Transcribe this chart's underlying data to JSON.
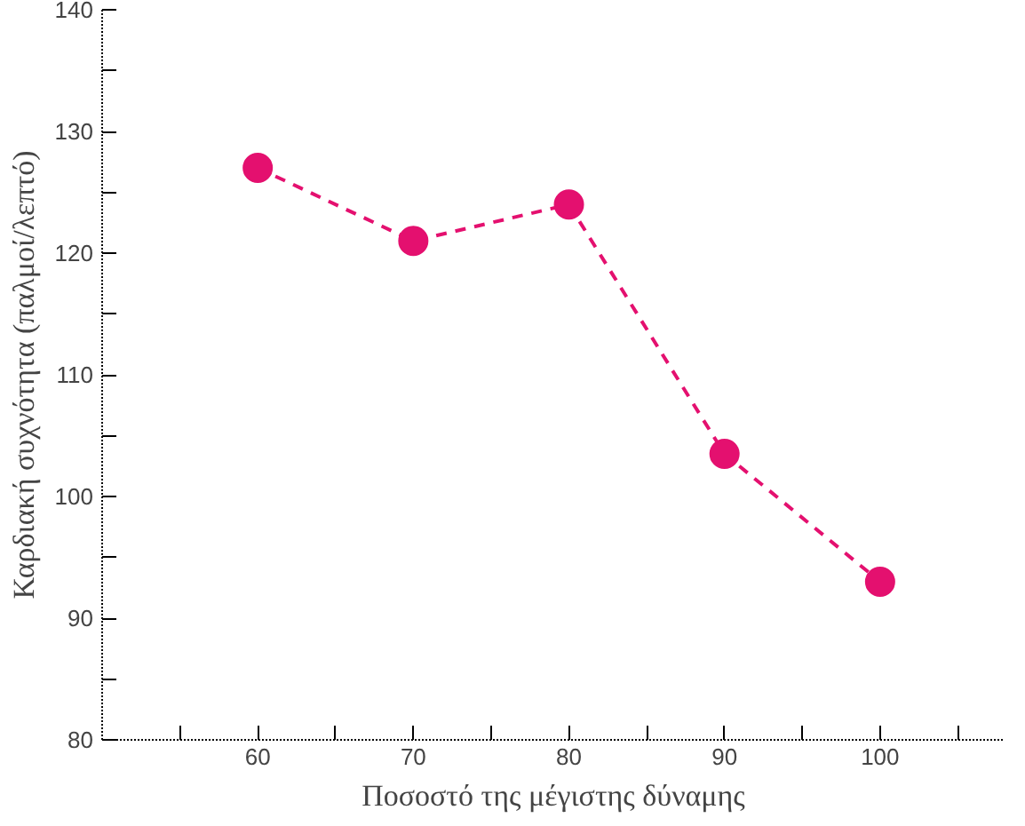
{
  "chart_data": {
    "type": "line",
    "xlabel": "Ποσοστό της μέγιστης δύναμης",
    "ylabel": "Καρδιακή συχνότητα (παλμοί/λεπτό)",
    "x": [
      60,
      70,
      80,
      90,
      100
    ],
    "series": [
      {
        "color": "#e4106f",
        "values": [
          127,
          121,
          124,
          103.5,
          93
        ]
      }
    ],
    "xlim": [
      50,
      108
    ],
    "ylim": [
      80,
      140
    ],
    "xticks": [
      {
        "value": 55,
        "label": null
      },
      60,
      {
        "value": 65,
        "label": null
      },
      70,
      {
        "value": 75,
        "label": null
      },
      80,
      {
        "value": 85,
        "label": null
      },
      90,
      {
        "value": 95,
        "label": null
      },
      100,
      {
        "value": 105,
        "label": null
      }
    ],
    "yticks": [
      80,
      {
        "value": 85,
        "label": null
      },
      90,
      {
        "value": 95,
        "label": null
      },
      100,
      {
        "value": 105,
        "label": null
      },
      110,
      {
        "value": 115,
        "label": null
      },
      120,
      {
        "value": 125,
        "label": null
      },
      130,
      {
        "value": 135,
        "label": null
      },
      140
    ],
    "grid": false,
    "marker": "circle",
    "line_style": "dashed"
  }
}
